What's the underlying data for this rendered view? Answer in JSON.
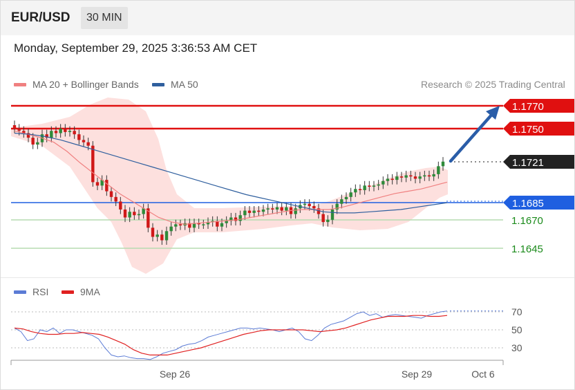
{
  "header": {
    "pair": "EUR/USD",
    "timeframe": "30 MIN"
  },
  "timestamp": "Monday, September 29, 2025 3:36:53 AM CET",
  "legend_main": [
    {
      "label": "MA 20 + Bollinger Bands",
      "color": "#f08080"
    },
    {
      "label": "MA 50",
      "color": "#2f5f9e"
    }
  ],
  "credit": "Research © 2025 Trading Central",
  "legend_rsi": [
    {
      "label": "RSI",
      "color": "#5b7bd5"
    },
    {
      "label": "9MA",
      "color": "#e02020"
    }
  ],
  "colors": {
    "resistance": "#e01010",
    "support": "#1f5fe0",
    "green_level": "#1a8a1a",
    "current_price": "#222222",
    "forecast_arrow": "#2a5da8",
    "bull_candle": "#2e8b3a",
    "bear_candle": "#d01818"
  },
  "chart_data": [
    {
      "type": "candlestick",
      "title": "EUR/USD 30 MIN",
      "x_tick_labels": [
        "Sep 26",
        "Sep 29",
        "Oct 6"
      ],
      "levels": [
        {
          "label": "1.1770",
          "value": 1.177,
          "kind": "resistance"
        },
        {
          "label": "1.1750",
          "value": 1.175,
          "kind": "resistance"
        },
        {
          "label": "1.1721",
          "value": 1.1721,
          "kind": "current"
        },
        {
          "label": "1.1685",
          "value": 1.1685,
          "kind": "support"
        },
        {
          "label": "1.1670",
          "value": 1.167,
          "kind": "support_minor"
        },
        {
          "label": "1.1645",
          "value": 1.1645,
          "kind": "support_minor"
        }
      ],
      "candles_close": [
        1.175,
        1.1748,
        1.1746,
        1.1742,
        1.1736,
        1.1738,
        1.1745,
        1.1742,
        1.1748,
        1.1746,
        1.175,
        1.1747,
        1.1748,
        1.1745,
        1.174,
        1.1738,
        1.1735,
        1.1703,
        1.17,
        1.1705,
        1.1695,
        1.169,
        1.1686,
        1.1679,
        1.1672,
        1.1677,
        1.1674,
        1.1675,
        1.168,
        1.1663,
        1.1655,
        1.1657,
        1.1652,
        1.166,
        1.1664,
        1.1666,
        1.1665,
        1.1667,
        1.1663,
        1.1667,
        1.1666,
        1.1666,
        1.1668,
        1.1669,
        1.1664,
        1.1667,
        1.1669,
        1.1672,
        1.1669,
        1.1674,
        1.1678,
        1.1676,
        1.1678,
        1.1677,
        1.1679,
        1.168,
        1.1679,
        1.1681,
        1.1678,
        1.1681,
        1.1675,
        1.168,
        1.1683,
        1.1684,
        1.1682,
        1.168,
        1.1675,
        1.1668,
        1.167,
        1.1679,
        1.1684,
        1.1688,
        1.169,
        1.1694,
        1.1697,
        1.1696,
        1.17,
        1.1699,
        1.17,
        1.1701,
        1.1704,
        1.1706,
        1.1705,
        1.1708,
        1.1707,
        1.1709,
        1.1708,
        1.1706,
        1.1708,
        1.1709,
        1.1708,
        1.171,
        1.1717,
        1.1721
      ],
      "series": [
        {
          "name": "MA 20",
          "values": [
            1.1748,
            1.1745,
            1.1742,
            1.1738,
            1.173,
            1.172,
            1.1711,
            1.1702,
            1.1693,
            1.1686,
            1.1679,
            1.1672,
            1.1668,
            1.1666,
            1.1667,
            1.1668,
            1.1669,
            1.167,
            1.1672,
            1.1674,
            1.1676,
            1.1678,
            1.1679,
            1.1679,
            1.1679,
            1.1681,
            1.1684,
            1.1687,
            1.169,
            1.1693,
            1.1695,
            1.1697,
            1.17,
            1.1703
          ]
        },
        {
          "name": "MA 50",
          "values": [
            1.1746,
            1.1745,
            1.1743,
            1.174,
            1.1736,
            1.1732,
            1.1728,
            1.1724,
            1.172,
            1.1716,
            1.1712,
            1.1708,
            1.1704,
            1.17,
            1.1696,
            1.1692,
            1.1689,
            1.1686,
            1.1683,
            1.168,
            1.1677,
            1.1676,
            1.1676,
            1.1677,
            1.1678,
            1.1679,
            1.1681,
            1.1683,
            1.1685
          ]
        }
      ]
    },
    {
      "type": "line",
      "title": "RSI",
      "y_ticks": [
        "70",
        "50",
        "30"
      ],
      "series": [
        {
          "name": "RSI",
          "values": [
            52,
            48,
            38,
            40,
            50,
            48,
            52,
            46,
            50,
            50,
            48,
            46,
            44,
            40,
            30,
            22,
            20,
            21,
            19,
            18,
            18,
            17,
            20,
            24,
            26,
            28,
            32,
            34,
            35,
            38,
            42,
            44,
            46,
            48,
            50,
            52,
            52,
            51,
            52,
            51,
            50,
            48,
            50,
            52,
            48,
            40,
            38,
            44,
            52,
            56,
            58,
            60,
            64,
            68,
            70,
            66,
            68,
            64,
            66,
            67,
            66,
            65,
            64,
            63,
            66,
            68,
            70,
            71
          ]
        },
        {
          "name": "9MA",
          "values": [
            52,
            51,
            48,
            46,
            45,
            45,
            46,
            46,
            47,
            46,
            45,
            42,
            38,
            34,
            28,
            24,
            22,
            22,
            22,
            24,
            26,
            28,
            30,
            33,
            36,
            39,
            42,
            45,
            47,
            49,
            50,
            50,
            50,
            50,
            50,
            49,
            48,
            49,
            50,
            52,
            55,
            58,
            61,
            63,
            65,
            65,
            65,
            66,
            66,
            65,
            65,
            66
          ]
        }
      ]
    }
  ]
}
